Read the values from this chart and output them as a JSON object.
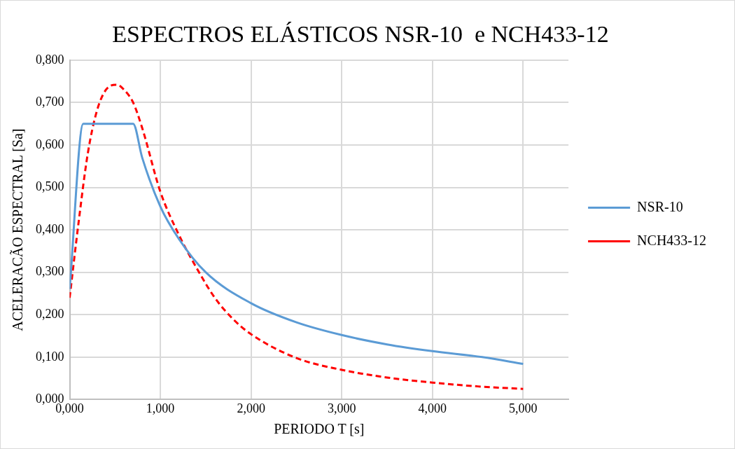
{
  "chart_data": {
    "type": "line",
    "title": "ESPECTROS ELÁSTICOS NSR-10  e NCH433-12",
    "xlabel": "PERIODO T [s]",
    "ylabel": "ACELERACÃO ESPECTRAL [Sa]",
    "xlim": [
      0,
      5.5
    ],
    "xticks": [
      {
        "value": 0,
        "label": "0,000"
      },
      {
        "value": 1,
        "label": "1,000"
      },
      {
        "value": 2,
        "label": "2,000"
      },
      {
        "value": 3,
        "label": "3,000"
      },
      {
        "value": 4,
        "label": "4,000"
      },
      {
        "value": 5,
        "label": "5,000"
      }
    ],
    "ylim": [
      0,
      0.8
    ],
    "yticks": [
      {
        "value": 0,
        "label": "0,000"
      },
      {
        "value": 0.1,
        "label": "0,100"
      },
      {
        "value": 0.2,
        "label": "0,200"
      },
      {
        "value": 0.3,
        "label": "0,300"
      },
      {
        "value": 0.4,
        "label": "0,400"
      },
      {
        "value": 0.5,
        "label": "0,500"
      },
      {
        "value": 0.6,
        "label": "0,600"
      },
      {
        "value": 0.7,
        "label": "0,700"
      },
      {
        "value": 0.8,
        "label": "0,800"
      }
    ],
    "grid": true,
    "legend": "right",
    "marker": "none",
    "series": [
      {
        "name": "NSR-10",
        "color": "#5b9bd5",
        "line_style": "solid",
        "x": [
          0,
          0.15,
          0.7,
          0.8,
          1,
          1.2,
          1.5,
          2,
          2.5,
          3,
          3.5,
          4,
          4.55,
          5
        ],
        "values": [
          0.26,
          0.65,
          0.65,
          0.57,
          0.455,
          0.38,
          0.3,
          0.227,
          0.182,
          0.152,
          0.13,
          0.114,
          0.1,
          0.084
        ]
      },
      {
        "name": "NCH433-12",
        "color": "#ff0000",
        "line_style": "dashed",
        "x": [
          0,
          0.1,
          0.2,
          0.3,
          0.4,
          0.52,
          0.6,
          0.7,
          0.8,
          1,
          1.2,
          1.4,
          1.6,
          1.8,
          2,
          2.5,
          3,
          3.5,
          4,
          4.5,
          5
        ],
        "values": [
          0.24,
          0.42,
          0.58,
          0.68,
          0.73,
          0.742,
          0.73,
          0.7,
          0.64,
          0.49,
          0.39,
          0.31,
          0.24,
          0.19,
          0.154,
          0.098,
          0.07,
          0.052,
          0.04,
          0.031,
          0.025
        ]
      }
    ]
  }
}
